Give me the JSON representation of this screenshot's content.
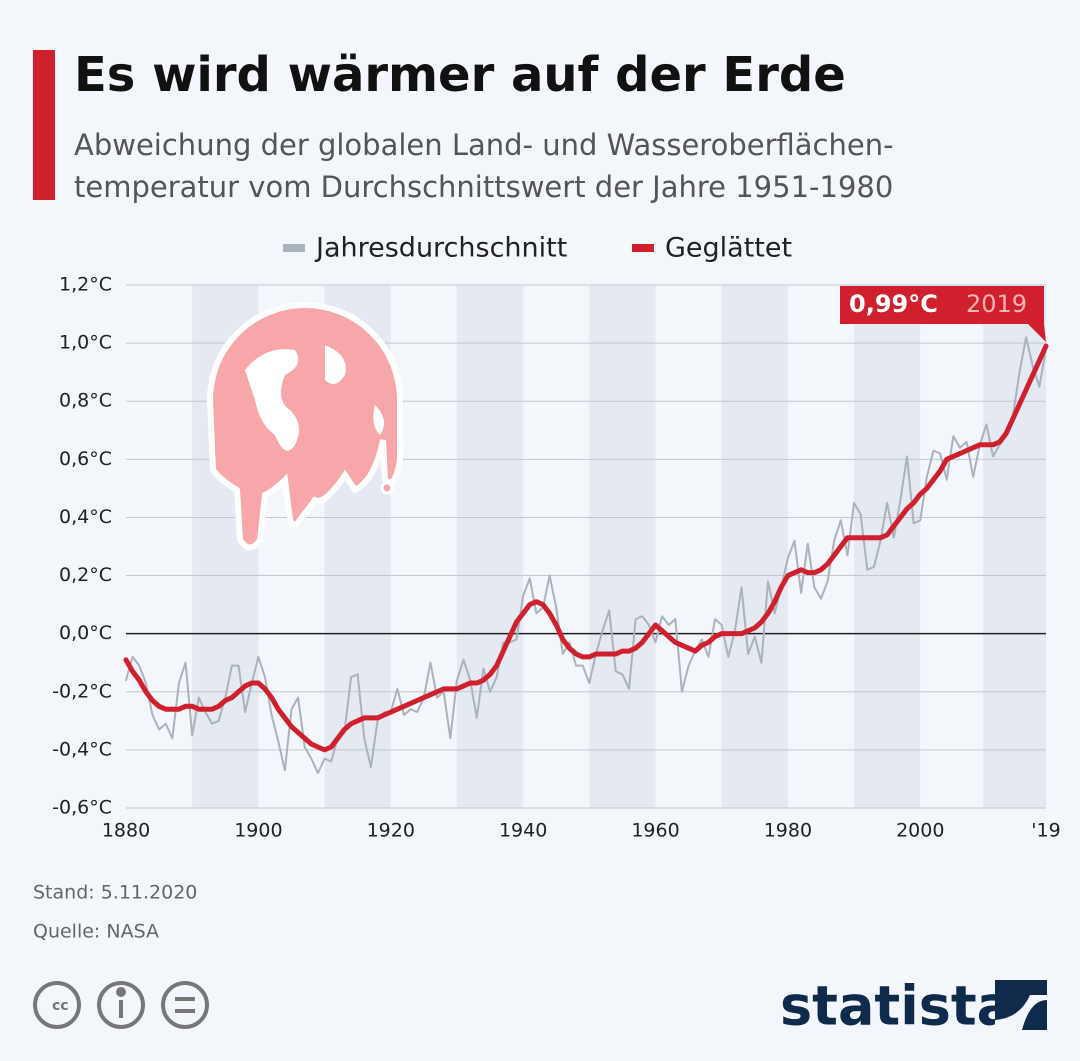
{
  "header": {
    "title": "Es wird wärmer auf der Erde",
    "subtitle": [
      "Abweichung der globalen Land- und Wasseroberflächen-",
      "temperatur vom Durchschnittswert der Jahre 1951-1980"
    ]
  },
  "chart_data": {
    "type": "line",
    "x": [
      1880,
      1881,
      1882,
      1883,
      1884,
      1885,
      1886,
      1887,
      1888,
      1889,
      1890,
      1891,
      1892,
      1893,
      1894,
      1895,
      1896,
      1897,
      1898,
      1899,
      1900,
      1901,
      1902,
      1903,
      1904,
      1905,
      1906,
      1907,
      1908,
      1909,
      1910,
      1911,
      1912,
      1913,
      1914,
      1915,
      1916,
      1917,
      1918,
      1919,
      1920,
      1921,
      1922,
      1923,
      1924,
      1925,
      1926,
      1927,
      1928,
      1929,
      1930,
      1931,
      1932,
      1933,
      1934,
      1935,
      1936,
      1937,
      1938,
      1939,
      1940,
      1941,
      1942,
      1943,
      1944,
      1945,
      1946,
      1947,
      1948,
      1949,
      1950,
      1951,
      1952,
      1953,
      1954,
      1955,
      1956,
      1957,
      1958,
      1959,
      1960,
      1961,
      1962,
      1963,
      1964,
      1965,
      1966,
      1967,
      1968,
      1969,
      1970,
      1971,
      1972,
      1973,
      1974,
      1975,
      1976,
      1977,
      1978,
      1979,
      1980,
      1981,
      1982,
      1983,
      1984,
      1985,
      1986,
      1987,
      1988,
      1989,
      1990,
      1991,
      1992,
      1993,
      1994,
      1995,
      1996,
      1997,
      1998,
      1999,
      2000,
      2001,
      2002,
      2003,
      2004,
      2005,
      2006,
      2007,
      2008,
      2009,
      2010,
      2011,
      2012,
      2013,
      2014,
      2015,
      2016,
      2017,
      2018,
      2019
    ],
    "series": [
      {
        "name": "Jahresdurchschnitt",
        "color": "#aab2bb",
        "values": [
          -0.16,
          -0.08,
          -0.11,
          -0.17,
          -0.28,
          -0.33,
          -0.31,
          -0.36,
          -0.17,
          -0.1,
          -0.35,
          -0.22,
          -0.27,
          -0.31,
          -0.3,
          -0.22,
          -0.11,
          -0.11,
          -0.27,
          -0.17,
          -0.08,
          -0.15,
          -0.28,
          -0.37,
          -0.47,
          -0.26,
          -0.22,
          -0.39,
          -0.43,
          -0.48,
          -0.43,
          -0.44,
          -0.36,
          -0.34,
          -0.15,
          -0.14,
          -0.36,
          -0.46,
          -0.3,
          -0.27,
          -0.27,
          -0.19,
          -0.28,
          -0.26,
          -0.27,
          -0.22,
          -0.1,
          -0.22,
          -0.2,
          -0.36,
          -0.16,
          -0.09,
          -0.16,
          -0.29,
          -0.12,
          -0.2,
          -0.15,
          -0.03,
          -0.03,
          -0.02,
          0.13,
          0.19,
          0.07,
          0.09,
          0.2,
          0.09,
          -0.07,
          -0.03,
          -0.11,
          -0.11,
          -0.17,
          -0.07,
          0.01,
          0.08,
          -0.13,
          -0.14,
          -0.19,
          0.05,
          0.06,
          0.03,
          -0.03,
          0.06,
          0.03,
          0.05,
          -0.2,
          -0.11,
          -0.06,
          -0.02,
          -0.08,
          0.05,
          0.03,
          -0.08,
          0.01,
          0.16,
          -0.07,
          -0.01,
          -0.1,
          0.18,
          0.07,
          0.16,
          0.26,
          0.32,
          0.14,
          0.31,
          0.16,
          0.12,
          0.18,
          0.32,
          0.39,
          0.27,
          0.45,
          0.41,
          0.22,
          0.23,
          0.32,
          0.45,
          0.33,
          0.46,
          0.61,
          0.38,
          0.39,
          0.54,
          0.63,
          0.62,
          0.53,
          0.68,
          0.64,
          0.66,
          0.54,
          0.65,
          0.72,
          0.61,
          0.65,
          0.68,
          0.75,
          0.9,
          1.02,
          0.92,
          0.85,
          0.98
        ]
      },
      {
        "name": "Geglättet",
        "color": "#d0202e",
        "values": [
          -0.09,
          -0.13,
          -0.16,
          -0.2,
          -0.23,
          -0.25,
          -0.26,
          -0.26,
          -0.26,
          -0.25,
          -0.25,
          -0.26,
          -0.26,
          -0.26,
          -0.25,
          -0.23,
          -0.22,
          -0.2,
          -0.18,
          -0.17,
          -0.17,
          -0.19,
          -0.22,
          -0.26,
          -0.29,
          -0.32,
          -0.34,
          -0.36,
          -0.38,
          -0.39,
          -0.4,
          -0.39,
          -0.36,
          -0.33,
          -0.31,
          -0.3,
          -0.29,
          -0.29,
          -0.29,
          -0.28,
          -0.27,
          -0.26,
          -0.25,
          -0.24,
          -0.23,
          -0.22,
          -0.21,
          -0.2,
          -0.19,
          -0.19,
          -0.19,
          -0.18,
          -0.17,
          -0.17,
          -0.16,
          -0.14,
          -0.11,
          -0.06,
          -0.01,
          0.04,
          0.07,
          0.1,
          0.11,
          0.1,
          0.07,
          0.03,
          -0.02,
          -0.05,
          -0.07,
          -0.08,
          -0.08,
          -0.07,
          -0.07,
          -0.07,
          -0.07,
          -0.06,
          -0.06,
          -0.05,
          -0.03,
          0.0,
          0.03,
          0.01,
          -0.01,
          -0.03,
          -0.04,
          -0.05,
          -0.06,
          -0.04,
          -0.03,
          -0.01,
          0.0,
          0.0,
          0.0,
          0.0,
          0.01,
          0.02,
          0.04,
          0.07,
          0.11,
          0.16,
          0.2,
          0.21,
          0.22,
          0.21,
          0.21,
          0.22,
          0.24,
          0.27,
          0.3,
          0.33,
          0.33,
          0.33,
          0.33,
          0.33,
          0.33,
          0.34,
          0.37,
          0.4,
          0.43,
          0.45,
          0.48,
          0.5,
          0.53,
          0.56,
          0.6,
          0.61,
          0.62,
          0.63,
          0.64,
          0.65,
          0.65,
          0.65,
          0.66,
          0.69,
          0.74,
          0.79,
          0.84,
          0.89,
          0.94,
          0.99
        ]
      }
    ],
    "xlim": [
      1880,
      2019
    ],
    "xticks": [
      1880,
      1900,
      1920,
      1940,
      1960,
      1980,
      2000,
      {
        "value": 2019,
        "label": "'19"
      }
    ],
    "ylim": [
      -0.6,
      1.2
    ],
    "yticks": [
      {
        "value": -0.6,
        "label": "-0,6°C"
      },
      {
        "value": -0.4,
        "label": "-0,4°C"
      },
      {
        "value": -0.2,
        "label": "-0,2°C"
      },
      {
        "value": 0,
        "label": "0,0°C"
      },
      {
        "value": 0.2,
        "label": "0,2°C"
      },
      {
        "value": 0.4,
        "label": "0,4°C"
      },
      {
        "value": 0.6,
        "label": "0,6°C"
      },
      {
        "value": 0.8,
        "label": "0,8°C"
      },
      {
        "value": 1.0,
        "label": "1,0°C"
      },
      {
        "value": 1.2,
        "label": "1,2°C"
      }
    ],
    "grid": true,
    "annotation": {
      "value_label": "0,99°C",
      "year_label": "2019",
      "color": "#d0202e"
    }
  },
  "footer": {
    "date": "Stand: 5.11.2020",
    "source": "Quelle: NASA",
    "brand": "statista"
  }
}
